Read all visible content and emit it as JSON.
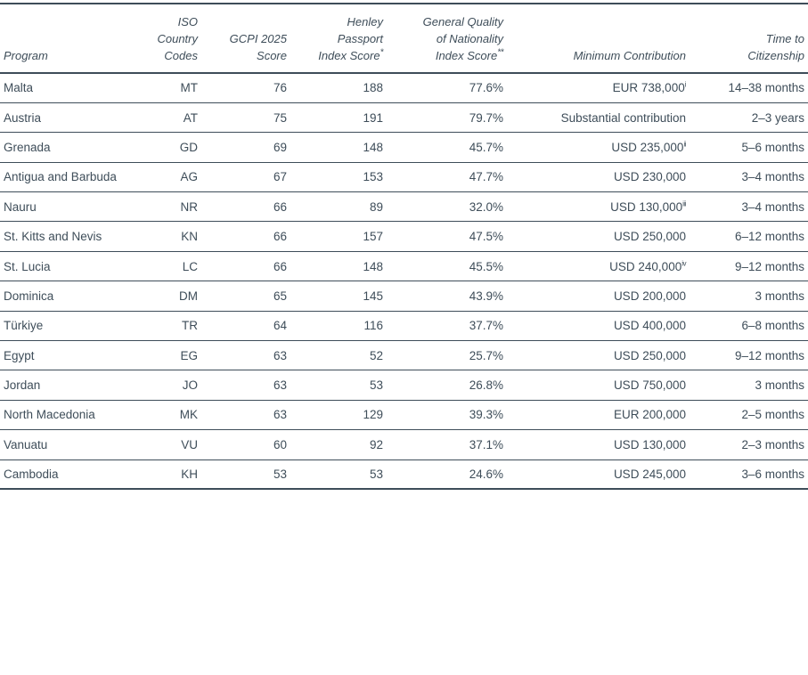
{
  "colors": {
    "text": "#3e4d59",
    "border": "#3e4d59",
    "background": "#ffffff"
  },
  "table": {
    "columns": [
      {
        "label": "Program",
        "note": ""
      },
      {
        "label": "ISO\nCountry\nCodes",
        "note": ""
      },
      {
        "label": "GCPI 2025\nScore",
        "note": ""
      },
      {
        "label": "Henley\nPassport\nIndex Score",
        "note": "*"
      },
      {
        "label": "General Quality\nof Nationality\nIndex Score",
        "note": "**"
      },
      {
        "label": "Minimum Contribution",
        "note": ""
      },
      {
        "label": "Time to\nCitizenship",
        "note": ""
      }
    ],
    "rows": [
      {
        "program": "Malta",
        "iso": "MT",
        "gcpi": "76",
        "henley": "188",
        "gqni": "77.6%",
        "contribution": "EUR 738,000",
        "contribution_note": "i",
        "time": "14–38 months"
      },
      {
        "program": "Austria",
        "iso": "AT",
        "gcpi": "75",
        "henley": "191",
        "gqni": "79.7%",
        "contribution": "Substantial contribution",
        "contribution_note": "",
        "time": "2–3 years"
      },
      {
        "program": "Grenada",
        "iso": "GD",
        "gcpi": "69",
        "henley": "148",
        "gqni": "45.7%",
        "contribution": "USD 235,000",
        "contribution_note": "ii",
        "time": "5–6 months"
      },
      {
        "program": "Antigua and Barbuda",
        "iso": "AG",
        "gcpi": "67",
        "henley": "153",
        "gqni": "47.7%",
        "contribution": "USD 230,000",
        "contribution_note": "",
        "time": "3–4 months"
      },
      {
        "program": "Nauru",
        "iso": "NR",
        "gcpi": "66",
        "henley": "89",
        "gqni": "32.0%",
        "contribution": "USD 130,000",
        "contribution_note": "iii",
        "time": "3–4 months"
      },
      {
        "program": "St. Kitts and Nevis",
        "iso": "KN",
        "gcpi": "66",
        "henley": "157",
        "gqni": "47.5%",
        "contribution": "USD 250,000",
        "contribution_note": "",
        "time": "6–12 months"
      },
      {
        "program": "St. Lucia",
        "iso": "LC",
        "gcpi": "66",
        "henley": "148",
        "gqni": "45.5%",
        "contribution": "USD 240,000",
        "contribution_note": "iv",
        "time": "9–12 months"
      },
      {
        "program": "Dominica",
        "iso": "DM",
        "gcpi": "65",
        "henley": "145",
        "gqni": "43.9%",
        "contribution": "USD 200,000",
        "contribution_note": "",
        "time": "3 months"
      },
      {
        "program": "Türkiye",
        "iso": "TR",
        "gcpi": "64",
        "henley": "116",
        "gqni": "37.7%",
        "contribution": "USD 400,000",
        "contribution_note": "",
        "time": "6–8 months"
      },
      {
        "program": "Egypt",
        "iso": "EG",
        "gcpi": "63",
        "henley": "52",
        "gqni": "25.7%",
        "contribution": "USD 250,000",
        "contribution_note": "",
        "time": "9–12 months"
      },
      {
        "program": "Jordan",
        "iso": "JO",
        "gcpi": "63",
        "henley": "53",
        "gqni": "26.8%",
        "contribution": "USD 750,000",
        "contribution_note": "",
        "time": "3 months"
      },
      {
        "program": "North Macedonia",
        "iso": "MK",
        "gcpi": "63",
        "henley": "129",
        "gqni": "39.3%",
        "contribution": "EUR 200,000",
        "contribution_note": "",
        "time": "2–5 months"
      },
      {
        "program": "Vanuatu",
        "iso": "VU",
        "gcpi": "60",
        "henley": "92",
        "gqni": "37.1%",
        "contribution": "USD 130,000",
        "contribution_note": "",
        "time": "2–3 months"
      },
      {
        "program": "Cambodia",
        "iso": "KH",
        "gcpi": "53",
        "henley": "53",
        "gqni": "24.6%",
        "contribution": "USD 245,000",
        "contribution_note": "",
        "time": "3–6 months"
      }
    ]
  }
}
